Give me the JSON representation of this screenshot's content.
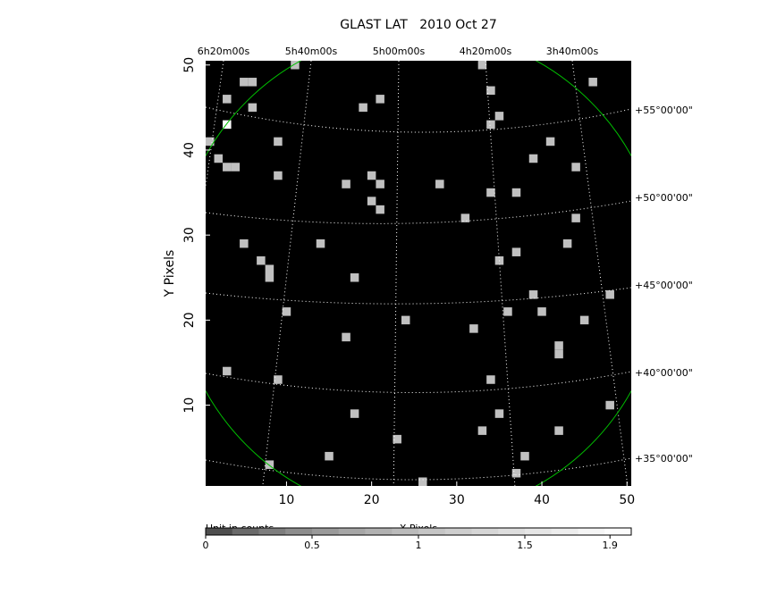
{
  "chart_data": {
    "type": "image",
    "title": "GLAST LAT   2010 Oct 27",
    "ylabel": "Y Pixels",
    "xlim": [
      0.5,
      50.5
    ],
    "ylim": [
      0.5,
      50.5
    ],
    "xticks": [
      10,
      20,
      30,
      40,
      50
    ],
    "yticks": [
      10,
      20,
      30,
      40,
      50
    ],
    "ra_labels": [
      "6h20m00s",
      "5h40m00s",
      "5h00m00s",
      "4h20m00s",
      "3h40m00s"
    ],
    "dec_labels": [
      "+55°00'00\"",
      "+50°00'00\"",
      "+45°00'00\"",
      "+40°00'00\"",
      "+35°00'00\""
    ],
    "colorbar": {
      "label": "Unit in counts",
      "xlabel": "X Pixels",
      "lim": [
        0,
        2
      ],
      "scale": "sqrt",
      "ticks": [
        0,
        0.5,
        1,
        1.5,
        1.9
      ]
    },
    "pixels": {
      "x": [
        11,
        5,
        6,
        33,
        34,
        46,
        3,
        6,
        19,
        21,
        35,
        34,
        3,
        1,
        9,
        41,
        2,
        3,
        4,
        39,
        44,
        9,
        20,
        17,
        21,
        28,
        34,
        37,
        20,
        21,
        31,
        44,
        5,
        14,
        43,
        37,
        7,
        35,
        8,
        8,
        18,
        39,
        48,
        10,
        36,
        40,
        24,
        45,
        32,
        17,
        42,
        42,
        3,
        9,
        34,
        48,
        18,
        35,
        33,
        42,
        23,
        15,
        38,
        8,
        37,
        26
      ],
      "y": [
        50,
        48,
        48,
        50,
        47,
        48,
        46,
        45,
        45,
        46,
        44,
        43,
        43,
        41,
        41,
        41,
        39,
        38,
        38,
        39,
        38,
        37,
        37,
        36,
        36,
        36,
        35,
        35,
        34,
        33,
        32,
        32,
        29,
        29,
        29,
        28,
        27,
        27,
        26,
        25,
        25,
        23,
        23,
        21,
        21,
        21,
        20,
        20,
        19,
        18,
        17,
        16,
        14,
        13,
        13,
        10,
        9,
        9,
        7,
        7,
        6,
        4,
        4,
        3,
        2,
        1
      ],
      "values": [
        1,
        1,
        1,
        1,
        1,
        1,
        1,
        1,
        1,
        1,
        1,
        1,
        2,
        1,
        1,
        1,
        1,
        1,
        1,
        1,
        1,
        1,
        1,
        1,
        1,
        1,
        1,
        1,
        1,
        1,
        1,
        1,
        1,
        1,
        1,
        1,
        1,
        1,
        1,
        1,
        1,
        1,
        1,
        1,
        1,
        1,
        1,
        1,
        1,
        1,
        1,
        1,
        1,
        1,
        1,
        1,
        1,
        1,
        1,
        1,
        1,
        1,
        1,
        1,
        1,
        1
      ]
    }
  }
}
